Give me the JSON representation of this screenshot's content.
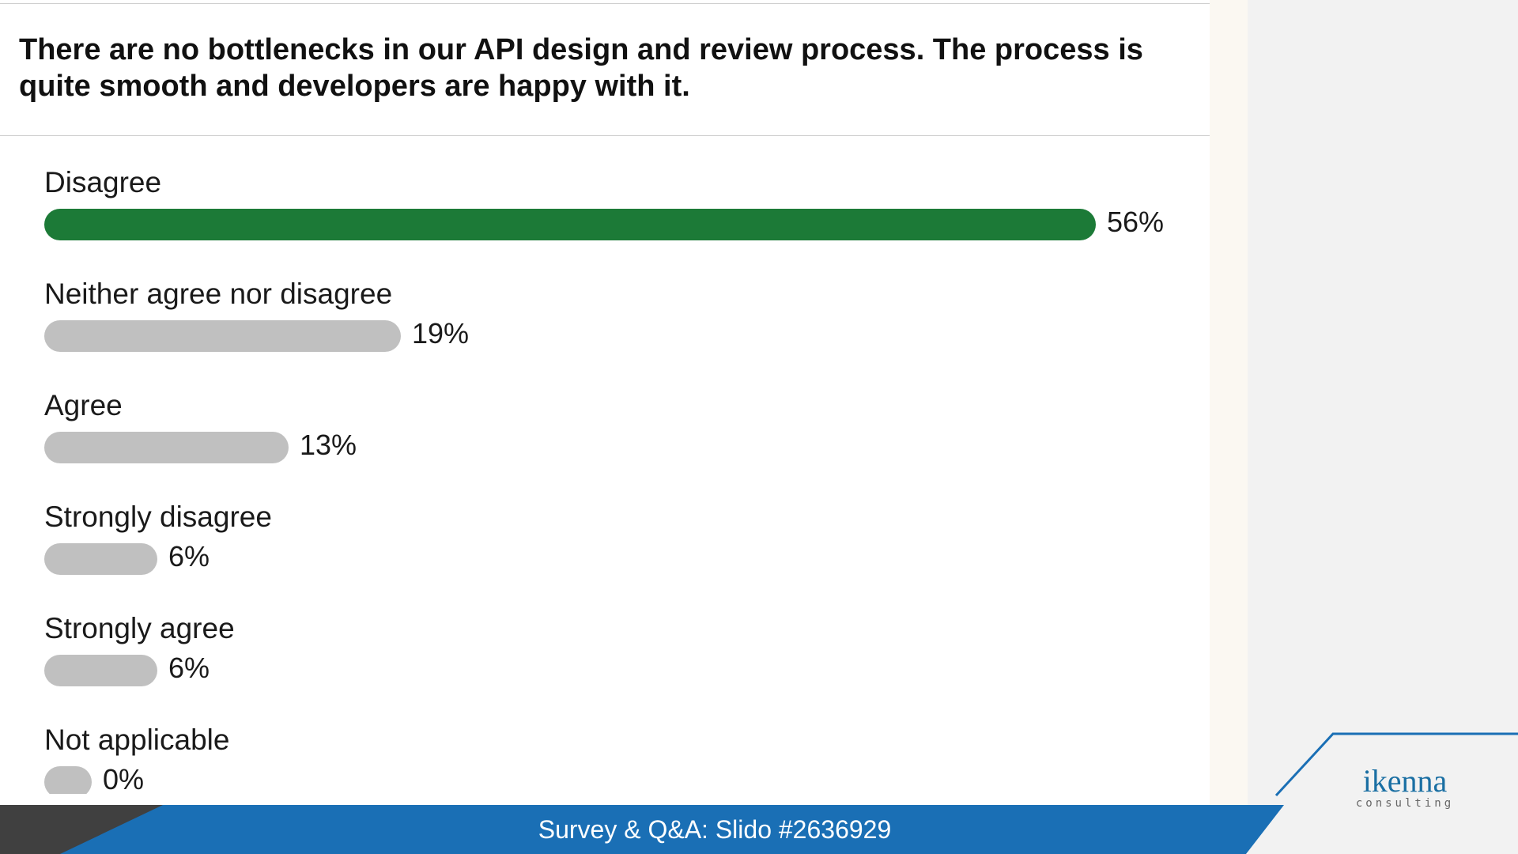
{
  "slide": {
    "question": "There are no bottlenecks in our API design and review process. The process is quite smooth and developers are happy with it."
  },
  "poll": {
    "options": [
      {
        "label": "Disagree",
        "percent_text": "56%"
      },
      {
        "label": "Neither agree nor disagree",
        "percent_text": "19%"
      },
      {
        "label": "Agree",
        "percent_text": "13%"
      },
      {
        "label": "Strongly disagree",
        "percent_text": "6%"
      },
      {
        "label": "Strongly agree",
        "percent_text": "6%"
      },
      {
        "label": "Not applicable",
        "percent_text": "0%"
      }
    ]
  },
  "chart_data": {
    "type": "bar",
    "orientation": "horizontal",
    "categories": [
      "Disagree",
      "Neither agree nor disagree",
      "Agree",
      "Strongly disagree",
      "Strongly agree",
      "Not applicable"
    ],
    "values": [
      56,
      19,
      13,
      6,
      6,
      0
    ],
    "value_unit": "%",
    "highlight_color": "#1c7a37",
    "bar_color": "#c0c0c0"
  },
  "footer": {
    "text": "Survey & Q&A: Slido #2636929",
    "band_color": "#1a6fb5"
  },
  "logo": {
    "main": "ikenna",
    "sub": "consulting"
  }
}
